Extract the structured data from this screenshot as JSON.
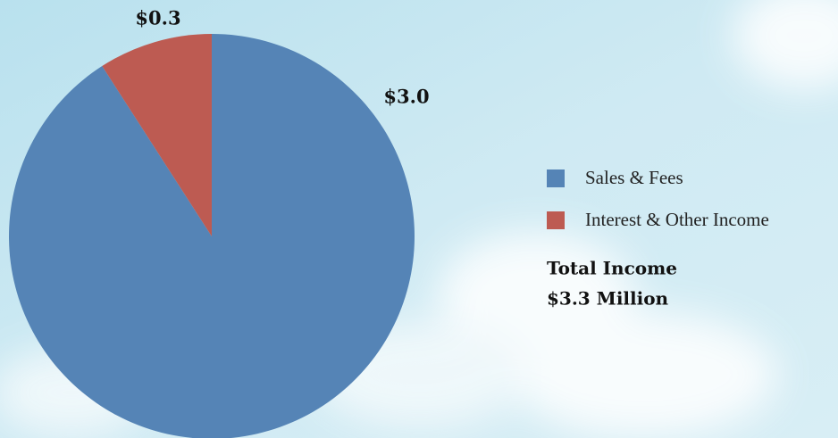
{
  "chart_data": {
    "type": "pie",
    "categories": [
      "Sales & Fees",
      "Interest & Other Income"
    ],
    "values": [
      3.0,
      0.3
    ],
    "value_labels": [
      "$3.0",
      "$0.3"
    ],
    "colors": [
      "#5584b6",
      "#bd5b52"
    ],
    "start_angle": 0,
    "direction": "clockwise",
    "legend": "right",
    "annotations": [
      "Total Income",
      "$3.3 Million"
    ]
  }
}
